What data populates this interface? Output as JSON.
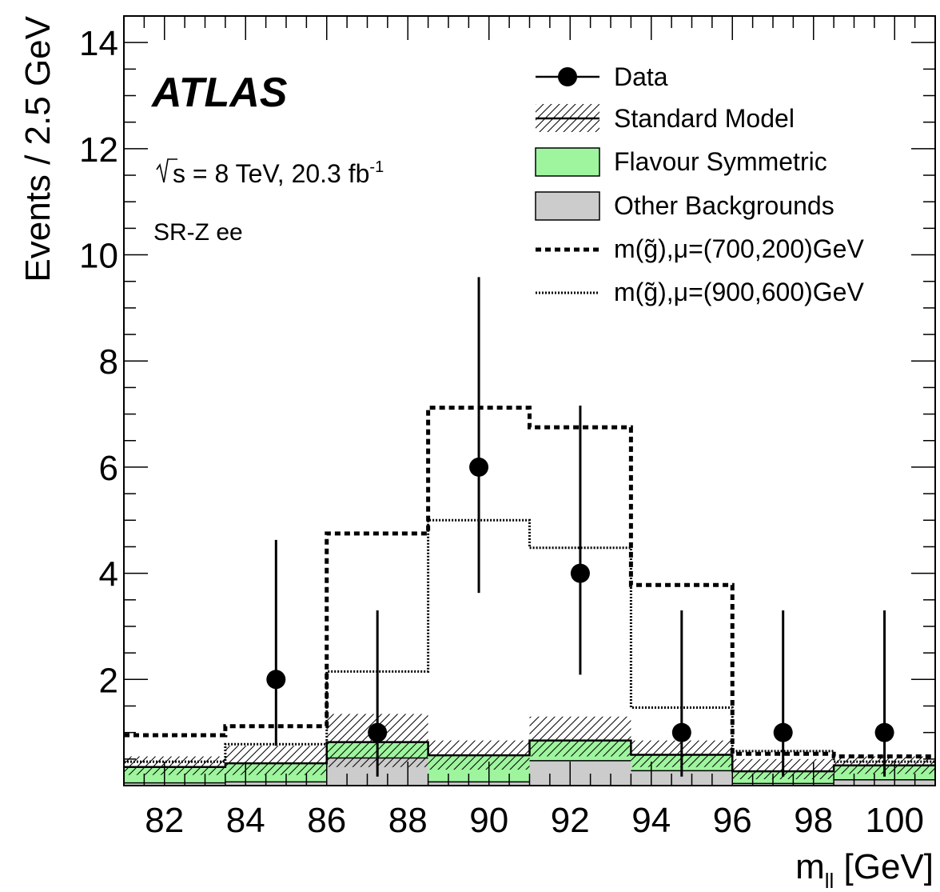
{
  "chart_data": {
    "type": "histogram",
    "experiment": "ATLAS",
    "annotations": {
      "energy_prefix": "s = 8 TeV, 20.3 fb",
      "energy_sup": "-1",
      "region": "SR-Z ee"
    },
    "xlabel": {
      "main": "m",
      "sub": "ll",
      "unit": " [GeV]"
    },
    "ylabel": "Events / 2.5 GeV",
    "xlim": [
      81,
      101
    ],
    "ylim": [
      0,
      14.5
    ],
    "x_ticks": [
      82,
      84,
      86,
      88,
      90,
      92,
      94,
      96,
      98,
      100
    ],
    "y_ticks": [
      2,
      4,
      6,
      8,
      10,
      12,
      14
    ],
    "bin_edges": [
      81,
      83.5,
      86,
      88.5,
      91,
      93.5,
      96,
      98.5,
      101
    ],
    "bin_centers": [
      82.25,
      84.75,
      87.25,
      89.75,
      92.25,
      94.75,
      97.25,
      99.75
    ],
    "series": [
      {
        "name": "Data",
        "kind": "points",
        "values": [
          null,
          2,
          1,
          6,
          4,
          1,
          1,
          1
        ],
        "err_low": [
          null,
          1.25,
          0.83,
          2.37,
          1.91,
          0.83,
          0.83,
          0.83
        ],
        "err_high": [
          null,
          2.63,
          2.3,
          3.58,
          3.16,
          2.3,
          2.3,
          2.3
        ]
      },
      {
        "name": "Standard Model",
        "kind": "line_with_hatched_band",
        "values": [
          0.35,
          0.42,
          0.82,
          0.57,
          0.85,
          0.58,
          0.27,
          0.38
        ],
        "band_low": [
          0.2,
          0.2,
          0.35,
          0.3,
          0.55,
          0.35,
          0.12,
          0.22
        ],
        "band_high": [
          0.55,
          0.75,
          1.35,
          0.85,
          1.3,
          0.85,
          0.5,
          0.55
        ]
      },
      {
        "name": "Flavour Symmetric",
        "kind": "stack",
        "values": [
          0.3,
          0.35,
          0.3,
          0.5,
          0.38,
          0.3,
          0.23,
          0.27
        ]
      },
      {
        "name": "Other Backgrounds",
        "kind": "stack",
        "values": [
          0.05,
          0.07,
          0.52,
          0.07,
          0.47,
          0.28,
          0.04,
          0.11
        ]
      },
      {
        "name_prefix": "m(",
        "name_glyph": "g̃",
        "name_suffix": "),μ=(700,200)GeV",
        "kind": "dashed_step",
        "values": [
          0.95,
          1.12,
          4.75,
          7.12,
          6.75,
          3.78,
          0.6,
          0.55
        ]
      },
      {
        "name_prefix": "m(",
        "name_glyph": "g̃",
        "name_suffix": "),μ=(900,600)GeV",
        "kind": "dotted_step",
        "values": [
          0.45,
          0.78,
          2.15,
          5.0,
          4.48,
          1.47,
          0.65,
          0.45
        ]
      }
    ],
    "legend_position": "top-right",
    "colors": {
      "flavour_symmetric": "#9ef59e",
      "other_backgrounds": "#cccccc",
      "axis": "#000000"
    }
  }
}
